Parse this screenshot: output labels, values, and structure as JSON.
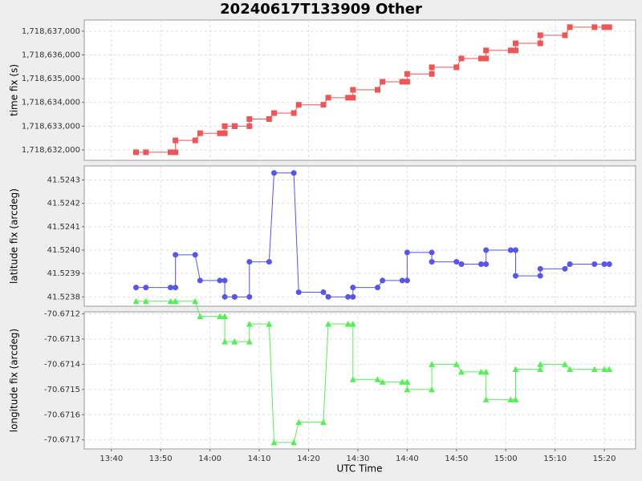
{
  "chart_data": [
    {
      "type": "line",
      "title": "20240617T133909 Other",
      "ylabel": "time fix (s)",
      "grid": true,
      "xlim": [
        "13:34:30",
        "15:26:20"
      ],
      "xticks": [
        "13:40",
        "13:50",
        "14:00",
        "14:10",
        "14:20",
        "14:30",
        "14:40",
        "14:50",
        "15:00",
        "15:10",
        "15:20"
      ],
      "ylim": [
        1718631560,
        1718637470
      ],
      "yticks": [
        {
          "value": 1718632000,
          "label": "1,718,632,000"
        },
        {
          "value": 1718633000,
          "label": "1,718,633,000"
        },
        {
          "value": 1718634000,
          "label": "1,718,634,000"
        },
        {
          "value": 1718635000,
          "label": "1,718,635,000"
        },
        {
          "value": 1718636000,
          "label": "1,718,636,000"
        },
        {
          "value": 1718637000,
          "label": "1,718,637,000"
        }
      ],
      "x": [
        "13:45",
        "13:47",
        "13:52",
        "13:53",
        "13:53",
        "13:57",
        "13:58",
        "14:02",
        "14:03",
        "14:03",
        "14:05",
        "14:05",
        "14:08",
        "14:08",
        "14:12",
        "14:13",
        "14:17",
        "14:18",
        "14:23",
        "14:24",
        "14:28",
        "14:29",
        "14:29",
        "14:34",
        "14:35",
        "14:39",
        "14:40",
        "14:40",
        "14:45",
        "14:45",
        "14:50",
        "14:51",
        "14:55",
        "14:56",
        "14:56",
        "15:01",
        "15:02",
        "15:02",
        "15:07",
        "15:07",
        "15:12",
        "15:13",
        "15:18",
        "15:20",
        "15:21"
      ],
      "series": [
        {
          "name": "time fix",
          "color": "#f05555",
          "marker": "square",
          "values": [
            1718631900,
            1718631900,
            1718631900,
            1718631900,
            1718632400,
            1718632400,
            1718632700,
            1718632700,
            1718632700,
            1718633000,
            1718633000,
            1718633000,
            1718633000,
            1718633300,
            1718633300,
            1718633550,
            1718633550,
            1718633900,
            1718633900,
            1718634200,
            1718634200,
            1718634200,
            1718634530,
            1718634530,
            1718634870,
            1718634870,
            1718634870,
            1718635200,
            1718635200,
            1718635480,
            1718635480,
            1718635850,
            1718635850,
            1718635850,
            1718636190,
            1718636190,
            1718636190,
            1718636490,
            1718636490,
            1718636830,
            1718636830,
            1718637170,
            1718637170,
            1718637170,
            1718637170
          ]
        }
      ]
    },
    {
      "type": "line",
      "ylabel": "latitude fix (arcdeg)",
      "grid": true,
      "xlim": [
        "13:34:30",
        "15:26:20"
      ],
      "xticks": [
        "13:40",
        "13:50",
        "14:00",
        "14:10",
        "14:20",
        "14:30",
        "14:40",
        "14:50",
        "15:00",
        "15:10",
        "15:20"
      ],
      "ylim": [
        41.52376,
        41.52436
      ],
      "yticks": [
        41.5238,
        41.5239,
        {
          "value": 41.524,
          "label": "41.5240"
        },
        41.5241,
        41.5242,
        41.5243
      ],
      "x": [
        "13:45",
        "13:47",
        "13:52",
        "13:53",
        "13:53",
        "13:57",
        "13:58",
        "14:02",
        "14:03",
        "14:03",
        "14:05",
        "14:05",
        "14:08",
        "14:08",
        "14:12",
        "14:13",
        "14:17",
        "14:18",
        "14:23",
        "14:24",
        "14:28",
        "14:29",
        "14:29",
        "14:34",
        "14:35",
        "14:39",
        "14:40",
        "14:40",
        "14:45",
        "14:45",
        "14:50",
        "14:51",
        "14:55",
        "14:56",
        "14:56",
        "15:01",
        "15:02",
        "15:02",
        "15:07",
        "15:07",
        "15:12",
        "15:13",
        "15:18",
        "15:20",
        "15:21"
      ],
      "series": [
        {
          "name": "latitude fix",
          "color": "#5555f0",
          "marker": "circle",
          "values": [
            41.52384,
            41.52384,
            41.52384,
            41.52384,
            41.52398,
            41.52398,
            41.52387,
            41.52387,
            41.52387,
            41.5238,
            41.5238,
            41.5238,
            41.5238,
            41.52395,
            41.52395,
            41.52433,
            41.52433,
            41.52382,
            41.52382,
            41.5238,
            41.5238,
            41.5238,
            41.52384,
            41.52384,
            41.52387,
            41.52387,
            41.52387,
            41.52399,
            41.52399,
            41.52395,
            41.52395,
            41.52394,
            41.52394,
            41.52394,
            41.524,
            41.524,
            41.524,
            41.52389,
            41.52389,
            41.52392,
            41.52392,
            41.52394,
            41.52394,
            41.52394,
            41.52394
          ]
        }
      ]
    },
    {
      "type": "line",
      "ylabel": "longitude fix (arcdeg)",
      "xlabel": "UTC Time",
      "grid": true,
      "xlim": [
        "13:34:30",
        "15:26:20"
      ],
      "xticks": [
        "13:40",
        "13:50",
        "14:00",
        "14:10",
        "14:20",
        "14:30",
        "14:40",
        "14:50",
        "15:00",
        "15:10",
        "15:20"
      ],
      "ylim": [
        -70.671736,
        -70.671192
      ],
      "yticks": [
        -70.6717,
        -70.6716,
        -70.6715,
        -70.6714,
        -70.6713,
        -70.6712
      ],
      "x": [
        "13:45",
        "13:47",
        "13:52",
        "13:53",
        "13:53",
        "13:57",
        "13:58",
        "14:02",
        "14:03",
        "14:03",
        "14:05",
        "14:05",
        "14:08",
        "14:08",
        "14:12",
        "14:13",
        "14:17",
        "14:18",
        "14:23",
        "14:24",
        "14:28",
        "14:29",
        "14:29",
        "14:34",
        "14:35",
        "14:39",
        "14:40",
        "14:40",
        "14:45",
        "14:45",
        "14:50",
        "14:51",
        "14:55",
        "14:56",
        "14:56",
        "15:01",
        "15:02",
        "15:02",
        "15:07",
        "15:07",
        "15:12",
        "15:13",
        "15:18",
        "15:20",
        "15:21"
      ],
      "series": [
        {
          "name": "longitude fix",
          "color": "#55f055",
          "marker": "triangle",
          "values": [
            -70.67115,
            -70.67115,
            -70.67115,
            -70.67115,
            -70.67115,
            -70.67115,
            -70.67121,
            -70.67121,
            -70.67121,
            -70.67131,
            -70.67131,
            -70.67131,
            -70.67131,
            -70.67124,
            -70.67124,
            -70.67171,
            -70.67171,
            -70.67163,
            -70.67163,
            -70.67124,
            -70.67124,
            -70.67124,
            -70.67146,
            -70.67146,
            -70.67147,
            -70.67147,
            -70.67147,
            -70.6715,
            -70.6715,
            -70.6714,
            -70.6714,
            -70.67143,
            -70.67143,
            -70.67143,
            -70.67154,
            -70.67154,
            -70.67154,
            -70.67142,
            -70.67142,
            -70.6714,
            -70.6714,
            -70.67142,
            -70.67142,
            -70.67142,
            -70.67142
          ]
        }
      ]
    }
  ]
}
